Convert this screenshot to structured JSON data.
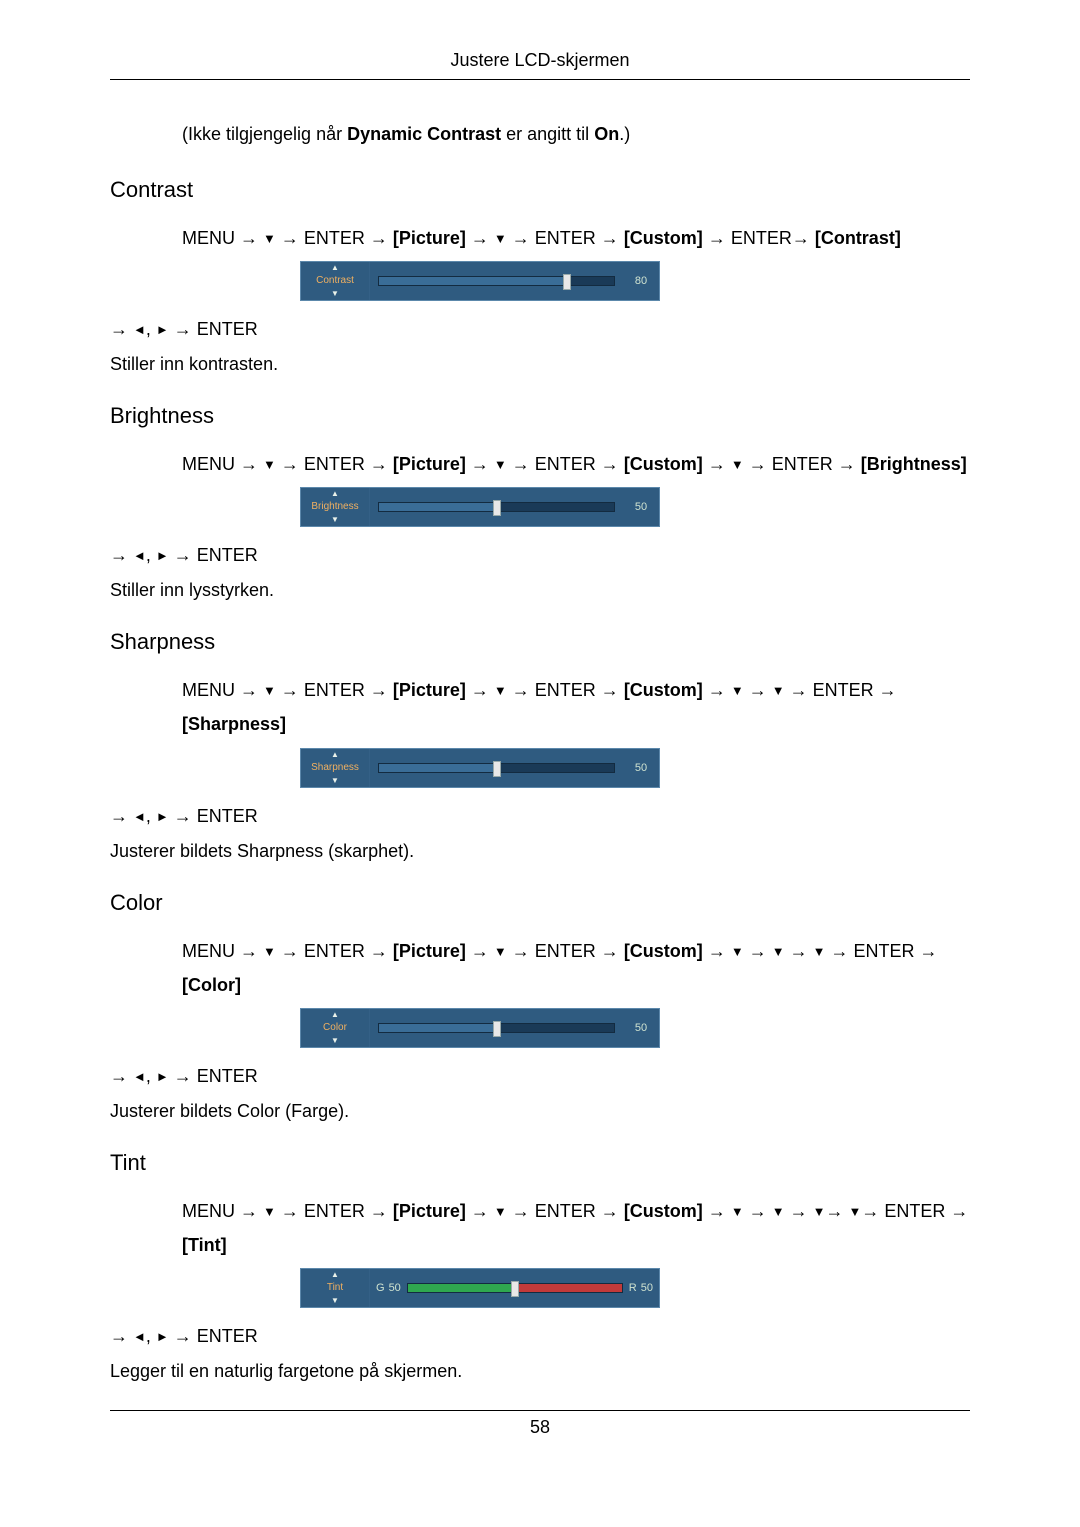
{
  "header": {
    "title": "Justere LCD-skjermen"
  },
  "footer": {
    "page_number": "58"
  },
  "colors": {
    "osd_bg": "#2f5b80",
    "osd_border": "#5c88ab",
    "osd_label_color": "#f0b060",
    "osd_track_bg": "#1a3a57",
    "osd_fill": "#3a6d97",
    "osd_text": "#cfe3d0",
    "tint_green": "#2fa84f",
    "tint_red": "#c23a3a"
  },
  "note": {
    "pre": "(Ikke tilgjengelig når ",
    "bold1": "Dynamic Contrast",
    "mid": " er angitt til ",
    "bold2": "On",
    "post": ".)"
  },
  "sections": [
    {
      "title": "Contrast",
      "path_parts": [
        "MENU → ",
        "▼",
        " → ENTER → ",
        "[Picture]",
        " → ",
        "▼",
        " → ENTER → ",
        "[Custom]",
        " → ENTER→ ",
        "[Contrast]"
      ],
      "osd": {
        "label": "Contrast",
        "value": 80,
        "percent": 80,
        "type": "standard"
      },
      "after": "→ ◄, ► → ENTER",
      "desc": "Stiller inn kontrasten."
    },
    {
      "title": "Brightness",
      "path_parts": [
        "MENU → ",
        "▼",
        " → ENTER → ",
        "[Picture]",
        " → ",
        "▼",
        " → ENTER → ",
        "[Custom]",
        " → ",
        "▼",
        " → ENTER → ",
        "[Brightness]"
      ],
      "osd": {
        "label": "Brightness",
        "value": 50,
        "percent": 50,
        "type": "standard"
      },
      "after": "→ ◄, ► → ENTER",
      "desc": "Stiller inn lysstyrken."
    },
    {
      "title": "Sharpness",
      "path_parts": [
        "MENU → ",
        "▼",
        " → ENTER → ",
        "[Picture]",
        " → ",
        "▼",
        " → ENTER → ",
        "[Custom]",
        " → ",
        "▼",
        " → ",
        "▼",
        " → ENTER → ",
        "[Sharpness]"
      ],
      "osd": {
        "label": "Sharpness",
        "value": 50,
        "percent": 50,
        "type": "standard"
      },
      "after": "→ ◄, ► → ENTER",
      "desc": "Justerer bildets Sharpness (skarphet)."
    },
    {
      "title": "Color",
      "path_parts": [
        "MENU → ",
        "▼",
        " → ENTER → ",
        "[Picture]",
        " → ",
        "▼",
        " → ENTER → ",
        "[Custom]",
        " → ",
        "▼",
        " → ",
        "▼",
        " → ",
        "▼",
        " → ENTER → ",
        "[Color]"
      ],
      "osd": {
        "label": "Color",
        "value": 50,
        "percent": 50,
        "type": "standard"
      },
      "after": "→ ◄, ► → ENTER",
      "desc": "Justerer bildets Color (Farge)."
    },
    {
      "title": "Tint",
      "path_parts": [
        "MENU → ",
        "▼",
        " → ENTER → ",
        "[Picture]",
        " → ",
        "▼",
        " → ENTER → ",
        "[Custom]",
        " → ",
        "▼",
        " → ",
        "▼",
        " → ",
        "▼",
        "→ ",
        "▼",
        "→ ENTER → ",
        "[Tint]"
      ],
      "osd": {
        "label": "Tint",
        "type": "tint",
        "g_value": 50,
        "r_value": 50,
        "percent": 50,
        "g_label": "G",
        "r_label": "R"
      },
      "after": "→ ◄, ► → ENTER",
      "desc": "Legger til en naturlig fargetone på skjermen."
    }
  ]
}
